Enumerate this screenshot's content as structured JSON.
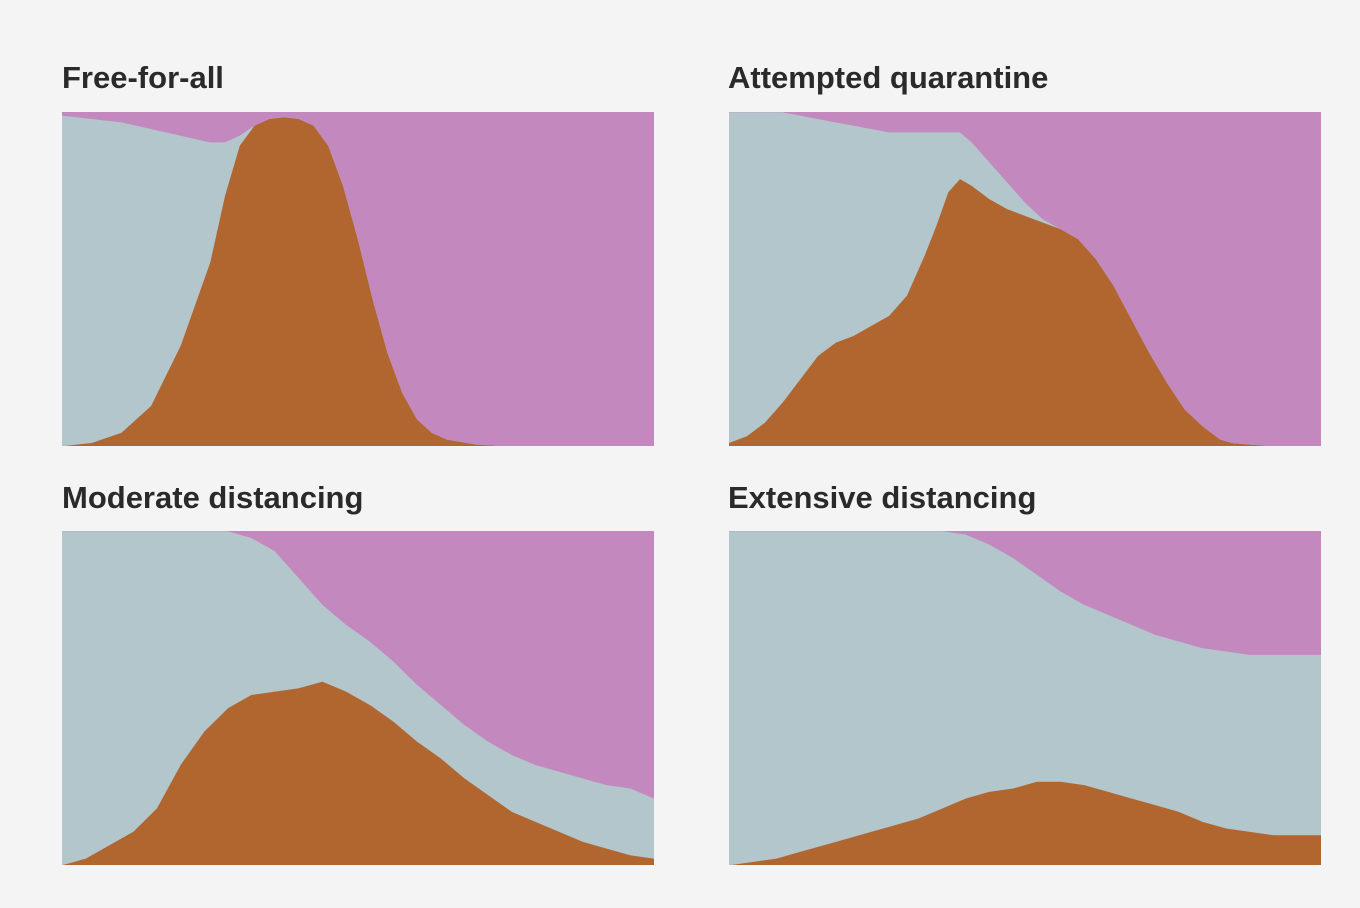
{
  "colors": {
    "susceptible": "#b2c6cc",
    "infected": "#b1652f",
    "recovered": "#c388be",
    "background": "#f4f4f4"
  },
  "chart_data": [
    {
      "type": "area",
      "stacked": true,
      "title": "Free-for-all",
      "grid": false,
      "ylim": [
        0,
        1
      ],
      "x": [
        0,
        5,
        10,
        15,
        20,
        25,
        27.5,
        30,
        32.5,
        35,
        37.5,
        40,
        42.5,
        45,
        47.5,
        50,
        52.5,
        55,
        57.5,
        60,
        62.5,
        65,
        70,
        75,
        80,
        85,
        90,
        95,
        100
      ],
      "series": [
        {
          "values": [
            0.0,
            0.01,
            0.04,
            0.12,
            0.3,
            0.55,
            0.75,
            0.9,
            0.96,
            0.98,
            0.985,
            0.98,
            0.96,
            0.9,
            0.78,
            0.62,
            0.44,
            0.28,
            0.16,
            0.08,
            0.04,
            0.02,
            0.005,
            0,
            0,
            0,
            0,
            0,
            0
          ]
        },
        {
          "values": [
            0.99,
            0.97,
            0.93,
            0.83,
            0.63,
            0.36,
            0.16,
            0.03,
            0,
            0,
            0,
            0,
            0,
            0,
            0,
            0,
            0,
            0,
            0,
            0,
            0,
            0,
            0,
            0,
            0,
            0,
            0,
            0,
            0
          ]
        },
        {
          "values": [
            0.01,
            0.02,
            0.03,
            0.05,
            0.07,
            0.09,
            0.09,
            0.07,
            0.04,
            0.02,
            0.015,
            0.02,
            0.04,
            0.1,
            0.22,
            0.38,
            0.56,
            0.72,
            0.84,
            0.92,
            0.96,
            0.98,
            0.995,
            1,
            1,
            1,
            1,
            1,
            1
          ]
        }
      ]
    },
    {
      "type": "area",
      "stacked": true,
      "title": "Attempted quarantine",
      "grid": false,
      "ylim": [
        0,
        1
      ],
      "x": [
        0,
        3,
        6,
        9,
        12,
        15,
        18,
        21,
        24,
        27,
        30,
        33,
        35,
        37,
        39,
        41,
        44,
        47,
        50,
        53,
        56,
        59,
        62,
        65,
        68,
        71,
        74,
        77,
        80,
        83,
        85,
        88,
        92,
        96,
        100
      ],
      "series": [
        {
          "values": [
            0.01,
            0.03,
            0.07,
            0.13,
            0.2,
            0.27,
            0.31,
            0.33,
            0.36,
            0.39,
            0.45,
            0.57,
            0.66,
            0.76,
            0.8,
            0.78,
            0.74,
            0.71,
            0.69,
            0.67,
            0.65,
            0.62,
            0.56,
            0.48,
            0.38,
            0.28,
            0.19,
            0.11,
            0.06,
            0.02,
            0.01,
            0.005,
            0,
            0,
            0
          ]
        },
        {
          "values": [
            0.99,
            0.97,
            0.93,
            0.87,
            0.79,
            0.71,
            0.66,
            0.63,
            0.59,
            0.55,
            0.49,
            0.37,
            0.28,
            0.18,
            0.14,
            0.13,
            0.11,
            0.08,
            0.04,
            0.01,
            0,
            0,
            0,
            0,
            0,
            0,
            0,
            0,
            0,
            0,
            0,
            0,
            0,
            0,
            0
          ]
        },
        {
          "values": [
            0,
            0,
            0,
            0,
            0.01,
            0.02,
            0.03,
            0.04,
            0.05,
            0.06,
            0.06,
            0.06,
            0.06,
            0.06,
            0.06,
            0.09,
            0.15,
            0.21,
            0.27,
            0.32,
            0.35,
            0.38,
            0.44,
            0.52,
            0.62,
            0.72,
            0.81,
            0.89,
            0.94,
            0.98,
            0.99,
            0.995,
            1,
            1,
            1
          ]
        }
      ]
    },
    {
      "type": "area",
      "stacked": true,
      "title": "Moderate distancing",
      "grid": false,
      "ylim": [
        0,
        1
      ],
      "x": [
        0,
        4,
        8,
        12,
        16,
        20,
        24,
        28,
        32,
        36,
        40,
        44,
        48,
        52,
        56,
        60,
        64,
        68,
        72,
        76,
        80,
        84,
        88,
        92,
        96,
        100
      ],
      "series": [
        {
          "values": [
            0.0,
            0.02,
            0.06,
            0.1,
            0.17,
            0.3,
            0.4,
            0.47,
            0.51,
            0.52,
            0.53,
            0.55,
            0.52,
            0.48,
            0.43,
            0.37,
            0.32,
            0.26,
            0.21,
            0.16,
            0.13,
            0.1,
            0.07,
            0.05,
            0.03,
            0.02
          ]
        },
        {
          "values": [
            1.0,
            0.98,
            0.94,
            0.9,
            0.83,
            0.7,
            0.6,
            0.53,
            0.47,
            0.42,
            0.33,
            0.23,
            0.2,
            0.19,
            0.18,
            0.17,
            0.16,
            0.16,
            0.16,
            0.17,
            0.17,
            0.18,
            0.19,
            0.19,
            0.2,
            0.18
          ]
        },
        {
          "values": [
            0,
            0,
            0,
            0,
            0,
            0,
            0,
            0,
            0.02,
            0.06,
            0.14,
            0.22,
            0.28,
            0.33,
            0.39,
            0.46,
            0.52,
            0.58,
            0.63,
            0.67,
            0.7,
            0.72,
            0.74,
            0.76,
            0.77,
            0.8
          ]
        }
      ]
    },
    {
      "type": "area",
      "stacked": true,
      "title": "Extensive distancing",
      "grid": false,
      "ylim": [
        0,
        1
      ],
      "x": [
        0,
        4,
        8,
        12,
        16,
        20,
        24,
        28,
        32,
        36,
        40,
        44,
        48,
        52,
        56,
        60,
        64,
        68,
        72,
        76,
        80,
        84,
        88,
        92,
        96,
        100
      ],
      "series": [
        {
          "values": [
            0.0,
            0.01,
            0.02,
            0.04,
            0.06,
            0.08,
            0.1,
            0.12,
            0.14,
            0.17,
            0.2,
            0.22,
            0.23,
            0.25,
            0.25,
            0.24,
            0.22,
            0.2,
            0.18,
            0.16,
            0.13,
            0.11,
            0.1,
            0.09,
            0.09,
            0.09
          ]
        },
        {
          "values": [
            1.0,
            0.99,
            0.98,
            0.96,
            0.94,
            0.92,
            0.9,
            0.88,
            0.86,
            0.83,
            0.79,
            0.74,
            0.69,
            0.62,
            0.57,
            0.54,
            0.53,
            0.52,
            0.51,
            0.51,
            0.52,
            0.53,
            0.53,
            0.54,
            0.54,
            0.54
          ]
        },
        {
          "values": [
            0,
            0,
            0,
            0,
            0,
            0,
            0,
            0,
            0,
            0,
            0.01,
            0.04,
            0.08,
            0.13,
            0.18,
            0.22,
            0.25,
            0.28,
            0.31,
            0.33,
            0.35,
            0.36,
            0.37,
            0.37,
            0.37,
            0.37
          ]
        }
      ]
    }
  ]
}
